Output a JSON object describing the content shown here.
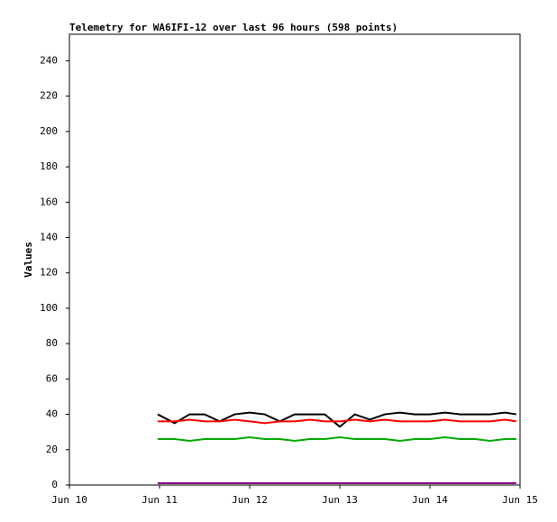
{
  "chart_data": {
    "type": "line",
    "title": "Telemetry for WA6IFI-12 over last 96 hours (598 points)",
    "y_label": "Values",
    "x": [
      23.5,
      28,
      32,
      36,
      40,
      44,
      48,
      52,
      56,
      60,
      64,
      68,
      72,
      76,
      80,
      84,
      88,
      92,
      96,
      100,
      104,
      108,
      112,
      116,
      119
    ],
    "series": [
      {
        "color": "#000000",
        "values": [
          40,
          35,
          40,
          40,
          36,
          40,
          41,
          40,
          36,
          40,
          40,
          40,
          33,
          40,
          37,
          40,
          41,
          40,
          40,
          41,
          40,
          40,
          40,
          41,
          40
        ]
      },
      {
        "color": "#ff0000",
        "values": [
          36,
          36,
          37,
          36,
          36,
          37,
          36,
          35,
          36,
          36,
          37,
          36,
          36,
          37,
          36,
          37,
          36,
          36,
          36,
          37,
          36,
          36,
          36,
          37,
          36
        ]
      },
      {
        "color": "#00aa00",
        "values": [
          26,
          26,
          25,
          26,
          26,
          26,
          27,
          26,
          26,
          25,
          26,
          26,
          27,
          26,
          26,
          26,
          25,
          26,
          26,
          27,
          26,
          26,
          25,
          26,
          26
        ]
      },
      {
        "color": "#800080",
        "values": [
          1,
          1,
          1,
          1,
          1,
          1,
          1,
          1,
          1,
          1,
          1,
          1,
          1,
          1,
          1,
          1,
          1,
          1,
          1,
          1,
          1,
          1,
          1,
          1,
          1
        ]
      }
    ],
    "xlim": [
      0,
      120
    ],
    "xticks": [
      {
        "value": 0,
        "label": "Jun 10"
      },
      {
        "value": 24,
        "label": "Jun 11"
      },
      {
        "value": 48,
        "label": "Jun 12"
      },
      {
        "value": 72,
        "label": "Jun 13"
      },
      {
        "value": 96,
        "label": "Jun 14"
      },
      {
        "value": 120,
        "label": "Jun 15"
      }
    ],
    "ylim": [
      0,
      255
    ],
    "yticks": [
      0,
      20,
      40,
      60,
      80,
      100,
      120,
      140,
      160,
      180,
      200,
      220,
      240
    ]
  }
}
